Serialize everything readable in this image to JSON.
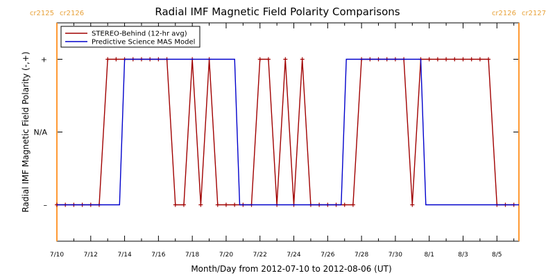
{
  "colors": {
    "stereo": "#a00000",
    "model": "#0000cc",
    "boundary": "#ff9933",
    "axis": "#000000",
    "cr_label": "#e8a23a"
  },
  "chart_data": {
    "type": "line",
    "title": "Radial IMF Magnetic Field Polarity Comparisons",
    "xlabel": "Month/Day from 2012-07-10 to 2012-08-06 (UT)",
    "ylabel": "Radial IMF Magnetic Field Polarity (-,+)",
    "x_unit": "days",
    "xlim": [
      0,
      27.3
    ],
    "ylim": [
      -1.5,
      1.5
    ],
    "grid": false,
    "legend_position": "top-left",
    "y_levels": [
      {
        "value": 1,
        "label": "+"
      },
      {
        "value": 0,
        "label": "N/A"
      },
      {
        "value": -1,
        "label": "–"
      }
    ],
    "x_ticks": [
      {
        "value": 0,
        "label": "7/10"
      },
      {
        "value": 2,
        "label": "7/12"
      },
      {
        "value": 4,
        "label": "7/14"
      },
      {
        "value": 6,
        "label": "7/16"
      },
      {
        "value": 8,
        "label": "7/18"
      },
      {
        "value": 10,
        "label": "7/20"
      },
      {
        "value": 12,
        "label": "7/22"
      },
      {
        "value": 14,
        "label": "7/24"
      },
      {
        "value": 16,
        "label": "7/26"
      },
      {
        "value": 18,
        "label": "7/28"
      },
      {
        "value": 20,
        "label": "7/30"
      },
      {
        "value": 22,
        "label": "8/1"
      },
      {
        "value": 24,
        "label": "8/3"
      },
      {
        "value": 26,
        "label": "8/5"
      }
    ],
    "boundaries": [
      {
        "x": 0,
        "left_label": "cr2125",
        "right_label": "cr2126"
      },
      {
        "x": 27.3,
        "left_label": "cr2126",
        "right_label": "cr2127"
      }
    ],
    "series": [
      {
        "name": "STEREO-Behind (12-hr avg)",
        "color_key": "stereo",
        "markers": true,
        "points": [
          [
            0.0,
            -1
          ],
          [
            0.5,
            -1
          ],
          [
            1.0,
            -1
          ],
          [
            1.5,
            -1
          ],
          [
            2.0,
            -1
          ],
          [
            2.5,
            -1
          ],
          [
            3.0,
            1
          ],
          [
            3.5,
            1
          ],
          [
            4.0,
            1
          ],
          [
            4.5,
            1
          ],
          [
            5.0,
            1
          ],
          [
            5.5,
            1
          ],
          [
            6.0,
            1
          ],
          [
            6.5,
            1
          ],
          [
            7.0,
            -1
          ],
          [
            7.5,
            -1
          ],
          [
            8.0,
            1
          ],
          [
            8.5,
            -1
          ],
          [
            9.0,
            1
          ],
          [
            9.5,
            -1
          ],
          [
            10.0,
            -1
          ],
          [
            10.5,
            -1
          ],
          [
            11.0,
            -1
          ],
          [
            11.5,
            -1
          ],
          [
            12.0,
            1
          ],
          [
            12.5,
            1
          ],
          [
            13.0,
            -1
          ],
          [
            13.5,
            1
          ],
          [
            14.0,
            -1
          ],
          [
            14.5,
            1
          ],
          [
            15.0,
            -1
          ],
          [
            15.5,
            -1
          ],
          [
            16.0,
            -1
          ],
          [
            16.5,
            -1
          ],
          [
            17.0,
            -1
          ],
          [
            17.5,
            -1
          ],
          [
            18.0,
            1
          ],
          [
            18.5,
            1
          ],
          [
            19.0,
            1
          ],
          [
            19.5,
            1
          ],
          [
            20.0,
            1
          ],
          [
            20.5,
            1
          ],
          [
            21.0,
            -1
          ],
          [
            21.5,
            1
          ],
          [
            22.0,
            1
          ],
          [
            22.5,
            1
          ],
          [
            23.0,
            1
          ],
          [
            23.5,
            1
          ],
          [
            24.0,
            1
          ],
          [
            24.5,
            1
          ],
          [
            25.0,
            1
          ],
          [
            25.5,
            1
          ],
          [
            26.0,
            -1
          ],
          [
            26.5,
            -1
          ],
          [
            27.0,
            -1
          ]
        ]
      },
      {
        "name": "Predictive Science MAS Model",
        "color_key": "model",
        "markers": false,
        "points": [
          [
            0.0,
            -1
          ],
          [
            3.7,
            -1
          ],
          [
            4.0,
            1
          ],
          [
            10.5,
            1
          ],
          [
            10.8,
            -1
          ],
          [
            16.8,
            -1
          ],
          [
            17.1,
            1
          ],
          [
            21.5,
            1
          ],
          [
            21.8,
            -1
          ],
          [
            27.3,
            -1
          ]
        ]
      }
    ]
  }
}
